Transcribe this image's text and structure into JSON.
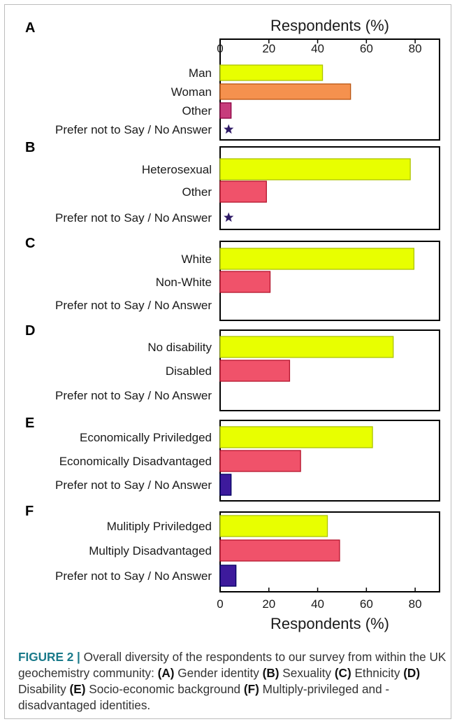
{
  "chart_data": {
    "type": "bar",
    "orientation": "horizontal",
    "axis_label": "Respondents (%)",
    "axis_positions": [
      "top",
      "bottom"
    ],
    "xlim": [
      0,
      90
    ],
    "ticks": [
      0,
      20,
      40,
      60,
      80
    ],
    "grid": false,
    "colors": {
      "primary": "#e8ff00",
      "orange": "#f5914e",
      "magenta": "#c73d7c",
      "red": "#f0526a",
      "purple": "#3d1a9c",
      "star": "#2e1a66"
    },
    "panels": [
      {
        "label": "A",
        "bars": [
          {
            "category": "Man",
            "value": 42,
            "color": "#e8ff00"
          },
          {
            "category": "Woman",
            "value": 53.5,
            "color": "#f5914e"
          },
          {
            "category": "Other",
            "value": 4.5,
            "color": "#c73d7c"
          },
          {
            "category": "Prefer not to Say / No Answer",
            "value": 3.5,
            "marker": "star",
            "color": "#2e1a66"
          }
        ]
      },
      {
        "label": "B",
        "bars": [
          {
            "category": "Heterosexual",
            "value": 78,
            "color": "#e8ff00"
          },
          {
            "category": "Other",
            "value": 19,
            "color": "#f0526a"
          },
          {
            "category": "Prefer not to Say / No Answer",
            "value": 3.5,
            "marker": "star",
            "color": "#2e1a66"
          }
        ]
      },
      {
        "label": "C",
        "bars": [
          {
            "category": "White",
            "value": 79.5,
            "color": "#e8ff00"
          },
          {
            "category": "Non-White",
            "value": 20.5,
            "color": "#f0526a"
          },
          {
            "category": "Prefer not to Say / No Answer",
            "value": 0,
            "color": "#3d1a9c"
          }
        ]
      },
      {
        "label": "D",
        "bars": [
          {
            "category": "No disability",
            "value": 71,
            "color": "#e8ff00"
          },
          {
            "category": "Disabled",
            "value": 28.5,
            "color": "#f0526a"
          },
          {
            "category": "Prefer not to Say / No Answer",
            "value": 0,
            "color": "#3d1a9c"
          }
        ]
      },
      {
        "label": "E",
        "bars": [
          {
            "category": "Economically Priviledged",
            "value": 62.5,
            "color": "#e8ff00"
          },
          {
            "category": "Economically Disadvantaged",
            "value": 33,
            "color": "#f0526a"
          },
          {
            "category": "Prefer not to Say / No Answer",
            "value": 4.5,
            "color": "#3d1a9c"
          }
        ]
      },
      {
        "label": "F",
        "bars": [
          {
            "category": "Mulitiply Priviledged",
            "value": 44,
            "color": "#e8ff00"
          },
          {
            "category": "Multiply Disadvantaged",
            "value": 49,
            "color": "#f0526a"
          },
          {
            "category": "Prefer not to Say / No Answer",
            "value": 6.5,
            "color": "#3d1a9c"
          }
        ]
      }
    ]
  },
  "caption": {
    "figure_label": "FIGURE 2 |",
    "intro": " Overall diversity of the respondents to our survey from within the UK geochemistry community: ",
    "parts": [
      {
        "tag": "(A)",
        "text": " Gender identity "
      },
      {
        "tag": "(B)",
        "text": " Sexuality "
      },
      {
        "tag": "(C)",
        "text": " Ethnicity "
      },
      {
        "tag": "(D)",
        "text": " Disability "
      },
      {
        "tag": "(E)",
        "text": " Socio-economic background "
      },
      {
        "tag": "(F)",
        "text": " Multiply-privileged and -disadvantaged identities."
      }
    ]
  }
}
